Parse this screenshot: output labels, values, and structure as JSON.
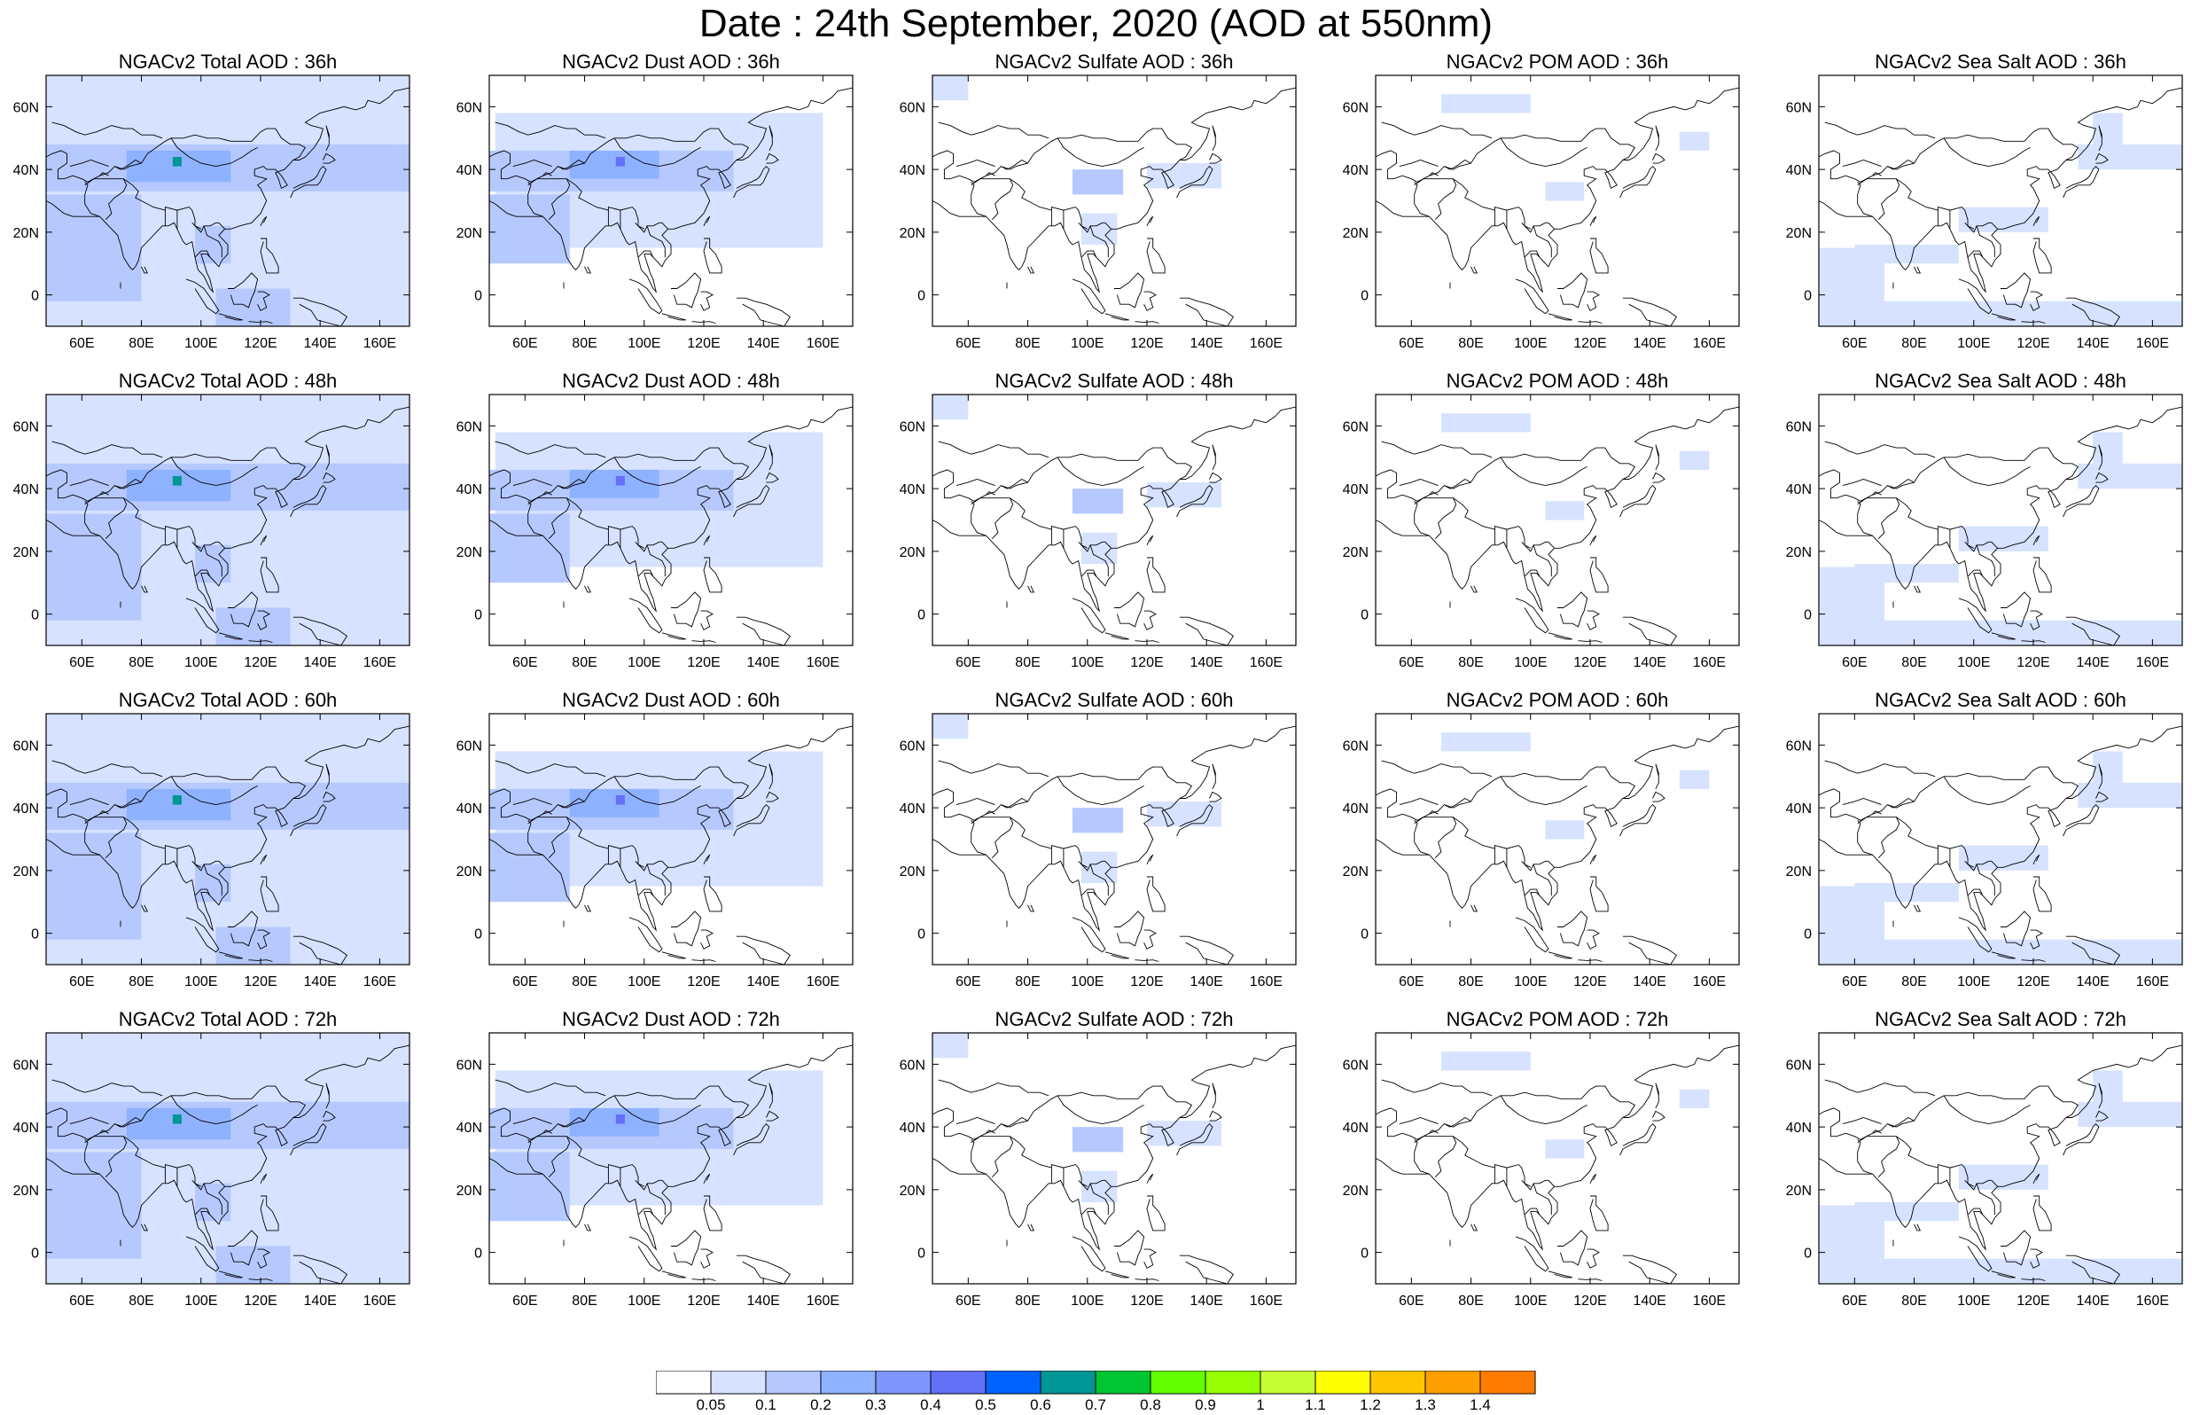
{
  "title": "Date : 24th September, 2020 (AOD at 550nm)",
  "row_hours": [
    "36h",
    "48h",
    "60h",
    "72h"
  ],
  "panels": [
    [
      "NGACv2 Total AOD : 36h",
      "NGACv2 Dust AOD : 36h",
      "NGACv2 Sulfate AOD : 36h",
      "NGACv2 POM AOD : 36h",
      "NGACv2 Sea Salt AOD : 36h"
    ],
    [
      "NGACv2 Total AOD : 48h",
      "NGACv2 Dust AOD : 48h",
      "NGACv2 Sulfate AOD : 48h",
      "NGACv2 POM AOD : 48h",
      "NGACv2 Sea Salt AOD : 48h"
    ],
    [
      "NGACv2 Total AOD : 60h",
      "NGACv2 Dust AOD : 60h",
      "NGACv2 Sulfate AOD : 60h",
      "NGACv2 POM AOD : 60h",
      "NGACv2 Sea Salt AOD : 60h"
    ],
    [
      "NGACv2 Total AOD : 72h",
      "NGACv2 Dust AOD : 72h",
      "NGACv2 Sulfate AOD : 72h",
      "NGACv2 POM AOD : 72h",
      "NGACv2 Sea Salt  AOD : 72h"
    ]
  ],
  "map_extent": {
    "lon": [
      48,
      170
    ],
    "lat": [
      -10,
      70
    ]
  },
  "lat_ticks": [
    "60N",
    "40N",
    "20N",
    "0"
  ],
  "lat_values": [
    60,
    40,
    20,
    0
  ],
  "lon_ticks": [
    "60E",
    "80E",
    "100E",
    "120E",
    "140E",
    "160E"
  ],
  "lon_values": [
    60,
    80,
    100,
    120,
    140,
    160
  ],
  "legend": {
    "labels": [
      "0.05",
      "0.1",
      "0.2",
      "0.3",
      "0.4",
      "0.5",
      "0.6",
      "0.7",
      "0.8",
      "0.9",
      "1",
      "1.1",
      "1.2",
      "1.3",
      "1.4"
    ],
    "colors": [
      "#ffffff",
      "#d6e2ff",
      "#b5c9ff",
      "#8eb2ff",
      "#7f96ff",
      "#6370f8",
      "#0063ff",
      "#009696",
      "#00c633",
      "#63ff00",
      "#96ff00",
      "#c6ff33",
      "#ffff00",
      "#ffc600",
      "#ffa000",
      "#ff7c00",
      "#ff1900"
    ]
  },
  "aod_field_colors": {
    "light": "#d6e2ff",
    "medium": "#b5c9ff",
    "strong": "#8eb2ff",
    "peak": "#6370f8",
    "hotspot": "#009696"
  }
}
